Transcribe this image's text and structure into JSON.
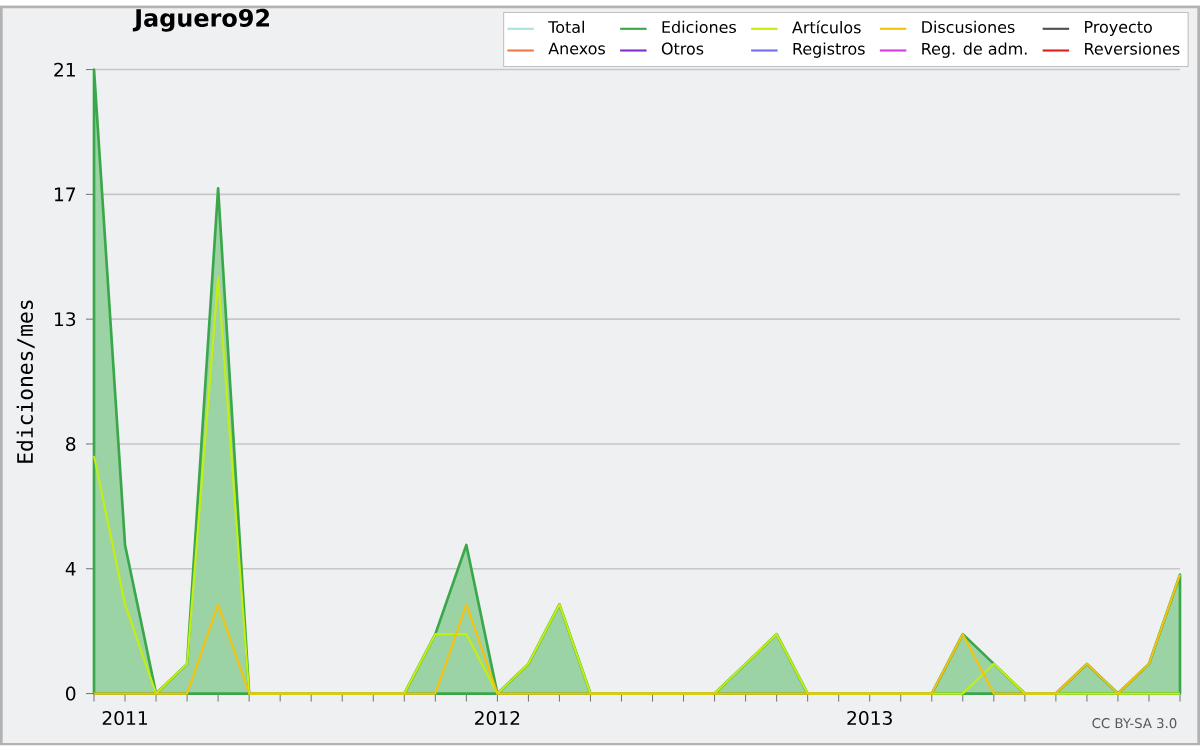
{
  "chart_data": {
    "type": "line",
    "title": "Jaguero92",
    "ylabel": "Ediciones/mes",
    "annotations": [
      "CC BY-SA 3.0"
    ],
    "x": [
      "2010-12",
      "2011-01",
      "2011-02",
      "2011-03",
      "2011-04",
      "2011-05",
      "2011-06",
      "2011-07",
      "2011-08",
      "2011-09",
      "2011-10",
      "2011-11",
      "2011-12",
      "2012-01",
      "2012-02",
      "2012-03",
      "2012-04",
      "2012-05",
      "2012-06",
      "2012-07",
      "2012-08",
      "2012-09",
      "2012-10",
      "2012-11",
      "2012-12",
      "2013-01",
      "2013-02",
      "2013-03",
      "2013-04",
      "2013-05",
      "2013-06",
      "2013-07",
      "2013-08",
      "2013-09",
      "2013-10",
      "2013-11"
    ],
    "xlim": [
      "2010-12",
      "2013-11"
    ],
    "xticks": [
      {
        "value": "2010-12",
        "label": null
      },
      {
        "value": "2011-01",
        "label": "2011"
      },
      {
        "value": "2011-02",
        "label": null
      },
      {
        "value": "2011-03",
        "label": null
      },
      {
        "value": "2011-04",
        "label": null
      },
      {
        "value": "2011-05",
        "label": null
      },
      {
        "value": "2011-06",
        "label": null
      },
      {
        "value": "2011-07",
        "label": null
      },
      {
        "value": "2011-08",
        "label": null
      },
      {
        "value": "2011-09",
        "label": null
      },
      {
        "value": "2011-10",
        "label": null
      },
      {
        "value": "2011-11",
        "label": null
      },
      {
        "value": "2011-12",
        "label": null
      },
      {
        "value": "2012-01",
        "label": "2012"
      },
      {
        "value": "2012-02",
        "label": null
      },
      {
        "value": "2012-03",
        "label": null
      },
      {
        "value": "2012-04",
        "label": null
      },
      {
        "value": "2012-05",
        "label": null
      },
      {
        "value": "2012-06",
        "label": null
      },
      {
        "value": "2012-07",
        "label": null
      },
      {
        "value": "2012-08",
        "label": null
      },
      {
        "value": "2012-09",
        "label": null
      },
      {
        "value": "2012-10",
        "label": null
      },
      {
        "value": "2012-11",
        "label": null
      },
      {
        "value": "2012-12",
        "label": null
      },
      {
        "value": "2013-01",
        "label": "2013"
      },
      {
        "value": "2013-02",
        "label": null
      },
      {
        "value": "2013-03",
        "label": null
      },
      {
        "value": "2013-04",
        "label": null
      },
      {
        "value": "2013-05",
        "label": null
      },
      {
        "value": "2013-06",
        "label": null
      },
      {
        "value": "2013-07",
        "label": null
      },
      {
        "value": "2013-08",
        "label": null
      },
      {
        "value": "2013-09",
        "label": null
      },
      {
        "value": "2013-10",
        "label": null
      },
      {
        "value": "2013-11",
        "label": null
      }
    ],
    "ylim": [
      0,
      21
    ],
    "yticks": [
      0,
      {
        "value": 4.2,
        "label": "4"
      },
      {
        "value": 8.4,
        "label": "8"
      },
      {
        "value": 12.6,
        "label": "13"
      },
      {
        "value": 16.8,
        "label": "17"
      },
      21
    ],
    "grid": "y",
    "legend": "top right",
    "series": [
      {
        "name": "Total",
        "color": "#a8e4e0",
        "values": [
          null,
          null,
          null,
          null,
          null,
          null,
          null,
          null,
          null,
          null,
          null,
          null,
          null,
          null,
          null,
          null,
          null,
          null,
          null,
          null,
          null,
          null,
          null,
          null,
          null,
          null,
          null,
          null,
          null,
          null,
          null,
          null,
          null,
          null,
          null,
          null
        ]
      },
      {
        "name": "Ediciones",
        "type": "area",
        "color": "#3aa84a",
        "values": [
          21,
          5,
          0,
          1,
          17,
          0,
          0,
          0,
          0,
          0,
          0,
          2,
          5,
          0,
          1,
          3,
          0,
          0,
          0,
          0,
          0,
          1,
          2,
          0,
          0,
          0,
          0,
          0,
          2,
          1,
          0,
          0,
          1,
          0,
          1,
          4
        ]
      },
      {
        "name": "Artículos",
        "color": "#c4ee10",
        "values": [
          8,
          3,
          0,
          1,
          14,
          0,
          0,
          0,
          0,
          0,
          0,
          2,
          2,
          0,
          1,
          3,
          0,
          0,
          0,
          0,
          0,
          1,
          2,
          0,
          0,
          0,
          0,
          0,
          0,
          1,
          0,
          0,
          0,
          0,
          0,
          0
        ]
      },
      {
        "name": "Discusiones",
        "color": "#f4c20c",
        "values": [
          0,
          0,
          0,
          0,
          3,
          0,
          0,
          0,
          0,
          0,
          0,
          0,
          3,
          0,
          0,
          0,
          0,
          0,
          0,
          0,
          0,
          0,
          0,
          0,
          0,
          0,
          0,
          0,
          2,
          0,
          0,
          0,
          1,
          0,
          1,
          4
        ]
      },
      {
        "name": "Proyecto",
        "color": "#505050",
        "values": [
          null,
          null,
          null,
          null,
          null,
          null,
          null,
          null,
          null,
          null,
          null,
          null,
          null,
          null,
          null,
          null,
          null,
          null,
          null,
          null,
          null,
          null,
          null,
          null,
          null,
          null,
          null,
          null,
          null,
          null,
          null,
          null,
          null,
          null,
          null,
          null
        ]
      },
      {
        "name": "Anexos",
        "color": "#f07a40",
        "values": [
          null,
          null,
          null,
          null,
          null,
          null,
          null,
          null,
          null,
          null,
          null,
          null,
          null,
          null,
          null,
          null,
          null,
          null,
          null,
          null,
          null,
          null,
          null,
          null,
          null,
          null,
          null,
          null,
          null,
          null,
          null,
          null,
          null,
          null,
          null,
          null
        ]
      },
      {
        "name": "Otros",
        "color": "#8030d0",
        "values": [
          null,
          null,
          null,
          null,
          null,
          null,
          null,
          null,
          null,
          null,
          null,
          null,
          null,
          null,
          null,
          null,
          null,
          null,
          null,
          null,
          null,
          null,
          null,
          null,
          null,
          null,
          null,
          null,
          null,
          null,
          null,
          null,
          null,
          null,
          null,
          null
        ]
      },
      {
        "name": "Registros",
        "color": "#7070f0",
        "values": [
          null,
          null,
          null,
          null,
          null,
          null,
          null,
          null,
          null,
          null,
          null,
          null,
          null,
          null,
          null,
          null,
          null,
          null,
          null,
          null,
          null,
          null,
          null,
          null,
          null,
          null,
          null,
          null,
          null,
          null,
          null,
          null,
          null,
          null,
          null,
          null
        ]
      },
      {
        "name": "Reg. de adm.",
        "color": "#d040e0",
        "values": [
          null,
          null,
          null,
          null,
          null,
          null,
          null,
          null,
          null,
          null,
          null,
          null,
          null,
          null,
          null,
          null,
          null,
          null,
          null,
          null,
          null,
          null,
          null,
          null,
          null,
          null,
          null,
          null,
          null,
          null,
          null,
          null,
          null,
          null,
          null,
          null
        ]
      },
      {
        "name": "Reversiones",
        "color": "#e02020",
        "values": [
          null,
          null,
          null,
          null,
          null,
          null,
          null,
          null,
          null,
          null,
          null,
          null,
          null,
          null,
          null,
          null,
          null,
          null,
          null,
          null,
          null,
          null,
          null,
          null,
          null,
          null,
          null,
          null,
          null,
          null,
          null,
          null,
          null,
          null,
          null,
          null
        ]
      }
    ]
  }
}
